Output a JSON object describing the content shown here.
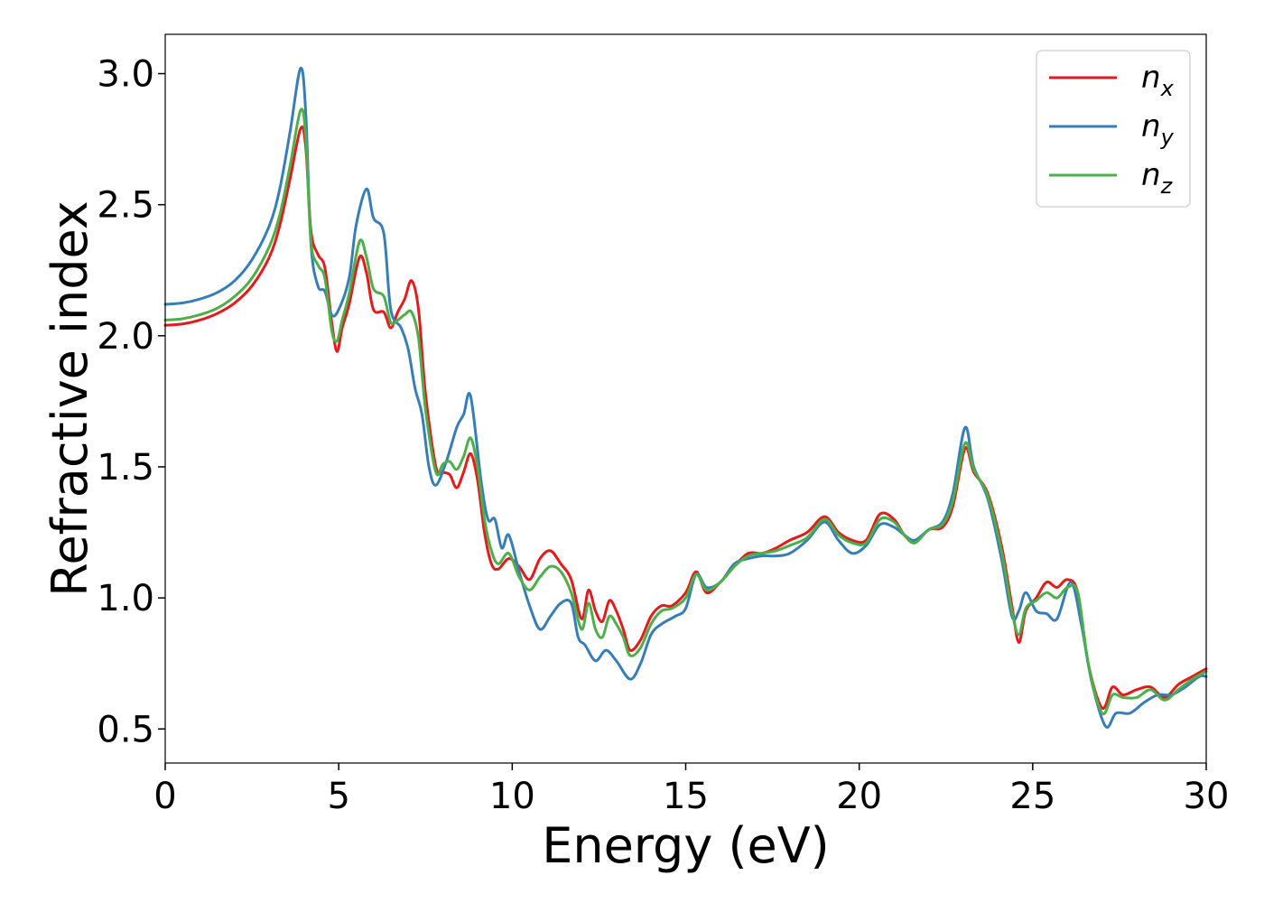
{
  "chart_data": {
    "type": "line",
    "xlabel": "Energy (eV)",
    "ylabel": "Refractive index",
    "xlim": [
      0,
      30
    ],
    "ylim": [
      0.37,
      3.15
    ],
    "grid": false,
    "legend_position": "top-right",
    "x_ticks": [
      0,
      5,
      10,
      15,
      20,
      25,
      30
    ],
    "x_tick_labels": [
      "0",
      "5",
      "10",
      "15",
      "20",
      "25",
      "30"
    ],
    "y_ticks": [
      0.5,
      1.0,
      1.5,
      2.0,
      2.5,
      3.0
    ],
    "y_tick_labels": [
      "0.5",
      "1.0",
      "1.5",
      "2.0",
      "2.5",
      "3.0"
    ],
    "series": [
      {
        "name": "n_x",
        "label_base": "n",
        "label_sub": "x",
        "color": "#e41a1c",
        "points": [
          [
            0,
            2.04
          ],
          [
            0.5,
            2.045
          ],
          [
            1,
            2.06
          ],
          [
            1.5,
            2.085
          ],
          [
            2,
            2.125
          ],
          [
            2.5,
            2.19
          ],
          [
            3,
            2.3
          ],
          [
            3.3,
            2.42
          ],
          [
            3.6,
            2.6
          ],
          [
            3.9,
            2.79
          ],
          [
            4.05,
            2.72
          ],
          [
            4.2,
            2.4
          ],
          [
            4.4,
            2.31
          ],
          [
            4.6,
            2.26
          ],
          [
            4.8,
            2.05
          ],
          [
            4.95,
            1.94
          ],
          [
            5.1,
            2.03
          ],
          [
            5.3,
            2.12
          ],
          [
            5.6,
            2.3
          ],
          [
            5.8,
            2.24
          ],
          [
            6,
            2.1
          ],
          [
            6.3,
            2.09
          ],
          [
            6.5,
            2.03
          ],
          [
            6.7,
            2.09
          ],
          [
            6.9,
            2.14
          ],
          [
            7.1,
            2.21
          ],
          [
            7.3,
            2.1
          ],
          [
            7.5,
            1.78
          ],
          [
            7.8,
            1.5
          ],
          [
            8,
            1.48
          ],
          [
            8.2,
            1.47
          ],
          [
            8.4,
            1.42
          ],
          [
            8.6,
            1.48
          ],
          [
            8.8,
            1.55
          ],
          [
            9,
            1.45
          ],
          [
            9.2,
            1.25
          ],
          [
            9.4,
            1.13
          ],
          [
            9.6,
            1.11
          ],
          [
            9.9,
            1.15
          ],
          [
            10.2,
            1.12
          ],
          [
            10.5,
            1.07
          ],
          [
            10.8,
            1.15
          ],
          [
            11.1,
            1.18
          ],
          [
            11.4,
            1.13
          ],
          [
            11.7,
            1.07
          ],
          [
            12,
            0.92
          ],
          [
            12.2,
            1.03
          ],
          [
            12.4,
            0.95
          ],
          [
            12.6,
            0.91
          ],
          [
            12.8,
            0.99
          ],
          [
            13,
            0.95
          ],
          [
            13.2,
            0.88
          ],
          [
            13.4,
            0.8
          ],
          [
            13.7,
            0.84
          ],
          [
            14,
            0.93
          ],
          [
            14.3,
            0.97
          ],
          [
            14.6,
            0.97
          ],
          [
            15,
            1.02
          ],
          [
            15.3,
            1.1
          ],
          [
            15.6,
            1.02
          ],
          [
            16,
            1.06
          ],
          [
            16.4,
            1.12
          ],
          [
            16.8,
            1.17
          ],
          [
            17.2,
            1.17
          ],
          [
            17.6,
            1.19
          ],
          [
            18,
            1.22
          ],
          [
            18.5,
            1.25
          ],
          [
            19,
            1.31
          ],
          [
            19.4,
            1.25
          ],
          [
            19.8,
            1.22
          ],
          [
            20.2,
            1.22
          ],
          [
            20.6,
            1.32
          ],
          [
            21,
            1.3
          ],
          [
            21.3,
            1.24
          ],
          [
            21.6,
            1.21
          ],
          [
            22,
            1.26
          ],
          [
            22.4,
            1.27
          ],
          [
            22.7,
            1.35
          ],
          [
            23.05,
            1.57
          ],
          [
            23.3,
            1.48
          ],
          [
            23.7,
            1.4
          ],
          [
            24.1,
            1.2
          ],
          [
            24.4,
            0.97
          ],
          [
            24.6,
            0.83
          ],
          [
            24.8,
            0.95
          ],
          [
            25.1,
            1
          ],
          [
            25.4,
            1.06
          ],
          [
            25.7,
            1.04
          ],
          [
            26,
            1.07
          ],
          [
            26.3,
            1.02
          ],
          [
            26.6,
            0.75
          ],
          [
            27,
            0.58
          ],
          [
            27.3,
            0.66
          ],
          [
            27.6,
            0.63
          ],
          [
            28,
            0.65
          ],
          [
            28.4,
            0.66
          ],
          [
            28.8,
            0.62
          ],
          [
            29.2,
            0.67
          ],
          [
            29.6,
            0.7
          ],
          [
            30,
            0.73
          ]
        ]
      },
      {
        "name": "n_y",
        "label_base": "n",
        "label_sub": "y",
        "color": "#377eb8",
        "points": [
          [
            0,
            2.12
          ],
          [
            0.5,
            2.125
          ],
          [
            1,
            2.14
          ],
          [
            1.5,
            2.165
          ],
          [
            2,
            2.21
          ],
          [
            2.5,
            2.29
          ],
          [
            3,
            2.42
          ],
          [
            3.3,
            2.56
          ],
          [
            3.6,
            2.78
          ],
          [
            3.9,
            3.02
          ],
          [
            4.05,
            2.85
          ],
          [
            4.2,
            2.35
          ],
          [
            4.4,
            2.19
          ],
          [
            4.6,
            2.17
          ],
          [
            4.8,
            2.08
          ],
          [
            5,
            2.1
          ],
          [
            5.3,
            2.22
          ],
          [
            5.5,
            2.42
          ],
          [
            5.8,
            2.56
          ],
          [
            6,
            2.45
          ],
          [
            6.3,
            2.39
          ],
          [
            6.5,
            2.1
          ],
          [
            6.8,
            2.03
          ],
          [
            7,
            1.95
          ],
          [
            7.2,
            1.8
          ],
          [
            7.4,
            1.7
          ],
          [
            7.6,
            1.5
          ],
          [
            7.8,
            1.43
          ],
          [
            8.1,
            1.52
          ],
          [
            8.4,
            1.65
          ],
          [
            8.6,
            1.7
          ],
          [
            8.8,
            1.77
          ],
          [
            9.1,
            1.45
          ],
          [
            9.3,
            1.3
          ],
          [
            9.5,
            1.3
          ],
          [
            9.7,
            1.19
          ],
          [
            9.9,
            1.24
          ],
          [
            10.2,
            1.1
          ],
          [
            10.5,
            0.97
          ],
          [
            10.8,
            0.88
          ],
          [
            11.1,
            0.93
          ],
          [
            11.4,
            0.98
          ],
          [
            11.7,
            0.98
          ],
          [
            11.9,
            0.85
          ],
          [
            12.1,
            0.82
          ],
          [
            12.4,
            0.76
          ],
          [
            12.7,
            0.8
          ],
          [
            13,
            0.76
          ],
          [
            13.4,
            0.69
          ],
          [
            13.7,
            0.75
          ],
          [
            14,
            0.86
          ],
          [
            14.3,
            0.9
          ],
          [
            14.7,
            0.93
          ],
          [
            15,
            0.96
          ],
          [
            15.3,
            1.09
          ],
          [
            15.6,
            1.04
          ],
          [
            16,
            1.06
          ],
          [
            16.4,
            1.13
          ],
          [
            16.8,
            1.15
          ],
          [
            17.2,
            1.16
          ],
          [
            17.6,
            1.16
          ],
          [
            18,
            1.17
          ],
          [
            18.5,
            1.22
          ],
          [
            19,
            1.29
          ],
          [
            19.4,
            1.22
          ],
          [
            19.8,
            1.17
          ],
          [
            20.2,
            1.2
          ],
          [
            20.6,
            1.28
          ],
          [
            21,
            1.27
          ],
          [
            21.3,
            1.24
          ],
          [
            21.6,
            1.22
          ],
          [
            22,
            1.26
          ],
          [
            22.4,
            1.29
          ],
          [
            22.7,
            1.4
          ],
          [
            23.05,
            1.65
          ],
          [
            23.3,
            1.5
          ],
          [
            23.7,
            1.38
          ],
          [
            24.1,
            1.15
          ],
          [
            24.4,
            0.93
          ],
          [
            24.6,
            0.95
          ],
          [
            24.8,
            1.02
          ],
          [
            25.1,
            0.95
          ],
          [
            25.4,
            0.94
          ],
          [
            25.7,
            0.92
          ],
          [
            26.1,
            1.06
          ],
          [
            26.4,
            0.9
          ],
          [
            26.7,
            0.68
          ],
          [
            27.1,
            0.51
          ],
          [
            27.4,
            0.56
          ],
          [
            27.8,
            0.56
          ],
          [
            28.2,
            0.6
          ],
          [
            28.6,
            0.63
          ],
          [
            29,
            0.63
          ],
          [
            29.4,
            0.66
          ],
          [
            29.8,
            0.7
          ],
          [
            30,
            0.7
          ]
        ]
      },
      {
        "name": "n_z",
        "label_base": "n",
        "label_sub": "z",
        "color": "#4daf4a",
        "points": [
          [
            0,
            2.06
          ],
          [
            0.5,
            2.065
          ],
          [
            1,
            2.08
          ],
          [
            1.5,
            2.105
          ],
          [
            2,
            2.15
          ],
          [
            2.5,
            2.22
          ],
          [
            3,
            2.34
          ],
          [
            3.3,
            2.46
          ],
          [
            3.6,
            2.65
          ],
          [
            3.9,
            2.86
          ],
          [
            4.05,
            2.76
          ],
          [
            4.2,
            2.36
          ],
          [
            4.4,
            2.27
          ],
          [
            4.6,
            2.22
          ],
          [
            4.8,
            2.02
          ],
          [
            4.95,
            1.98
          ],
          [
            5.1,
            2.06
          ],
          [
            5.3,
            2.16
          ],
          [
            5.6,
            2.36
          ],
          [
            5.8,
            2.3
          ],
          [
            6,
            2.18
          ],
          [
            6.3,
            2.15
          ],
          [
            6.5,
            2.05
          ],
          [
            6.7,
            2.06
          ],
          [
            6.9,
            2.08
          ],
          [
            7.1,
            2.09
          ],
          [
            7.3,
            1.99
          ],
          [
            7.5,
            1.72
          ],
          [
            7.8,
            1.48
          ],
          [
            8,
            1.51
          ],
          [
            8.2,
            1.52
          ],
          [
            8.4,
            1.49
          ],
          [
            8.6,
            1.54
          ],
          [
            8.8,
            1.61
          ],
          [
            9,
            1.5
          ],
          [
            9.2,
            1.3
          ],
          [
            9.4,
            1.18
          ],
          [
            9.6,
            1.13
          ],
          [
            9.9,
            1.17
          ],
          [
            10.2,
            1.08
          ],
          [
            10.5,
            1.03
          ],
          [
            10.8,
            1.08
          ],
          [
            11.1,
            1.12
          ],
          [
            11.4,
            1.1
          ],
          [
            11.7,
            1.02
          ],
          [
            12,
            0.88
          ],
          [
            12.2,
            0.98
          ],
          [
            12.4,
            0.88
          ],
          [
            12.6,
            0.85
          ],
          [
            12.8,
            0.93
          ],
          [
            13,
            0.9
          ],
          [
            13.2,
            0.85
          ],
          [
            13.4,
            0.78
          ],
          [
            13.7,
            0.81
          ],
          [
            14,
            0.9
          ],
          [
            14.3,
            0.95
          ],
          [
            14.6,
            0.96
          ],
          [
            15,
            1
          ],
          [
            15.3,
            1.09
          ],
          [
            15.6,
            1.03
          ],
          [
            16,
            1.06
          ],
          [
            16.4,
            1.12
          ],
          [
            16.8,
            1.16
          ],
          [
            17.2,
            1.17
          ],
          [
            17.6,
            1.18
          ],
          [
            18,
            1.2
          ],
          [
            18.5,
            1.23
          ],
          [
            19,
            1.3
          ],
          [
            19.4,
            1.24
          ],
          [
            19.8,
            1.21
          ],
          [
            20.2,
            1.21
          ],
          [
            20.6,
            1.3
          ],
          [
            21,
            1.29
          ],
          [
            21.3,
            1.24
          ],
          [
            21.6,
            1.21
          ],
          [
            22,
            1.26
          ],
          [
            22.4,
            1.28
          ],
          [
            22.7,
            1.37
          ],
          [
            23.05,
            1.59
          ],
          [
            23.3,
            1.49
          ],
          [
            23.7,
            1.39
          ],
          [
            24.1,
            1.18
          ],
          [
            24.4,
            0.95
          ],
          [
            24.6,
            0.86
          ],
          [
            24.8,
            0.96
          ],
          [
            25.1,
            0.99
          ],
          [
            25.4,
            1.02
          ],
          [
            25.7,
            1
          ],
          [
            26,
            1.04
          ],
          [
            26.3,
            1.02
          ],
          [
            26.6,
            0.75
          ],
          [
            27,
            0.56
          ],
          [
            27.3,
            0.63
          ],
          [
            27.6,
            0.62
          ],
          [
            28,
            0.62
          ],
          [
            28.4,
            0.65
          ],
          [
            28.8,
            0.61
          ],
          [
            29.2,
            0.65
          ],
          [
            29.6,
            0.69
          ],
          [
            30,
            0.72
          ]
        ]
      }
    ]
  }
}
